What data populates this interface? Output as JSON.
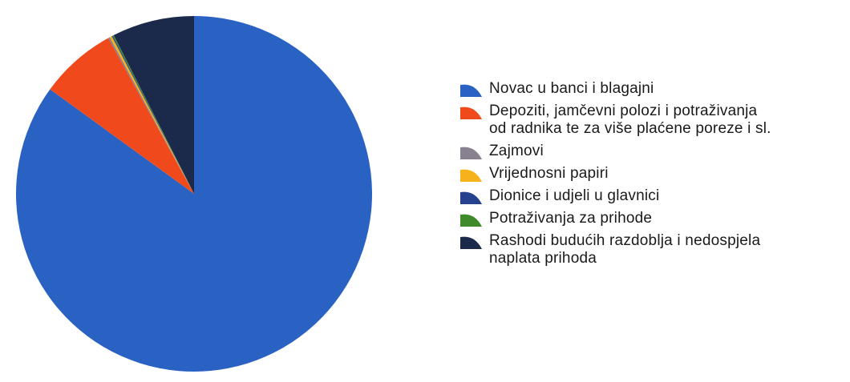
{
  "chart_data": {
    "type": "pie",
    "start_angle_deg": 0,
    "direction": "clockwise",
    "slices": [
      {
        "label": "Novac u banci i blagajni",
        "value": 85.0,
        "color": "#2a62c4"
      },
      {
        "label": "Depoziti, jamčevni polozi i potraživanja\nod radnika te za više plaćene poreze i sl.",
        "value": 7.0,
        "color": "#f04a1c"
      },
      {
        "label": "Zajmovi",
        "value": 0.15,
        "color": "#8a8190"
      },
      {
        "label": "Vrijednosni papiri",
        "value": 0.2,
        "color": "#f5b21a"
      },
      {
        "label": "Dionice i udjeli u glavnici",
        "value": 0.1,
        "color": "#26428f"
      },
      {
        "label": "Potraživanja za prihode",
        "value": 0.1,
        "color": "#3f8a2a"
      },
      {
        "label": "Rashodi budućih razdoblja i nedospjela\nnaplata prihoda",
        "value": 7.45,
        "color": "#1b2a4a"
      }
    ],
    "legend_position": "right"
  }
}
